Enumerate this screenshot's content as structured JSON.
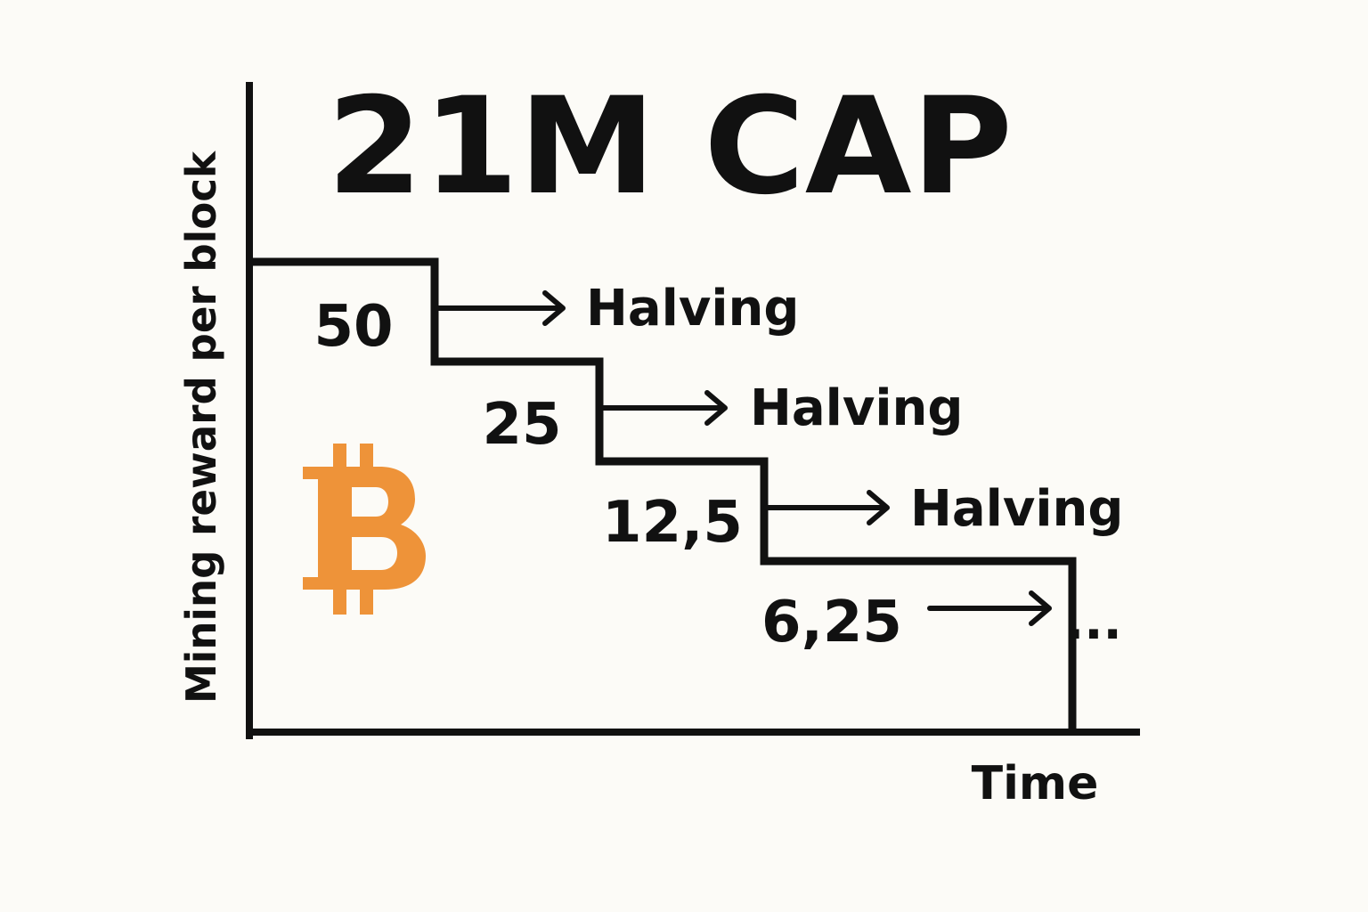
{
  "chart_data": {
    "type": "line",
    "title": "21M CAP",
    "ylabel": "Mining reward per block",
    "xlabel": "Time",
    "step": true,
    "grid": false,
    "series": [
      {
        "values": [
          50,
          25,
          12.5,
          6.25
        ]
      }
    ],
    "data_labels": [
      "50",
      "25",
      "12,5",
      "6,25"
    ],
    "annotations": [
      "Halving",
      "Halving",
      "Halving",
      "..."
    ],
    "colors": {
      "line": "#111111",
      "text": "#111111",
      "bitcoin_logo": "#f7931a",
      "background": "#fcfbf7"
    },
    "icon": "bitcoin-logo-icon"
  }
}
